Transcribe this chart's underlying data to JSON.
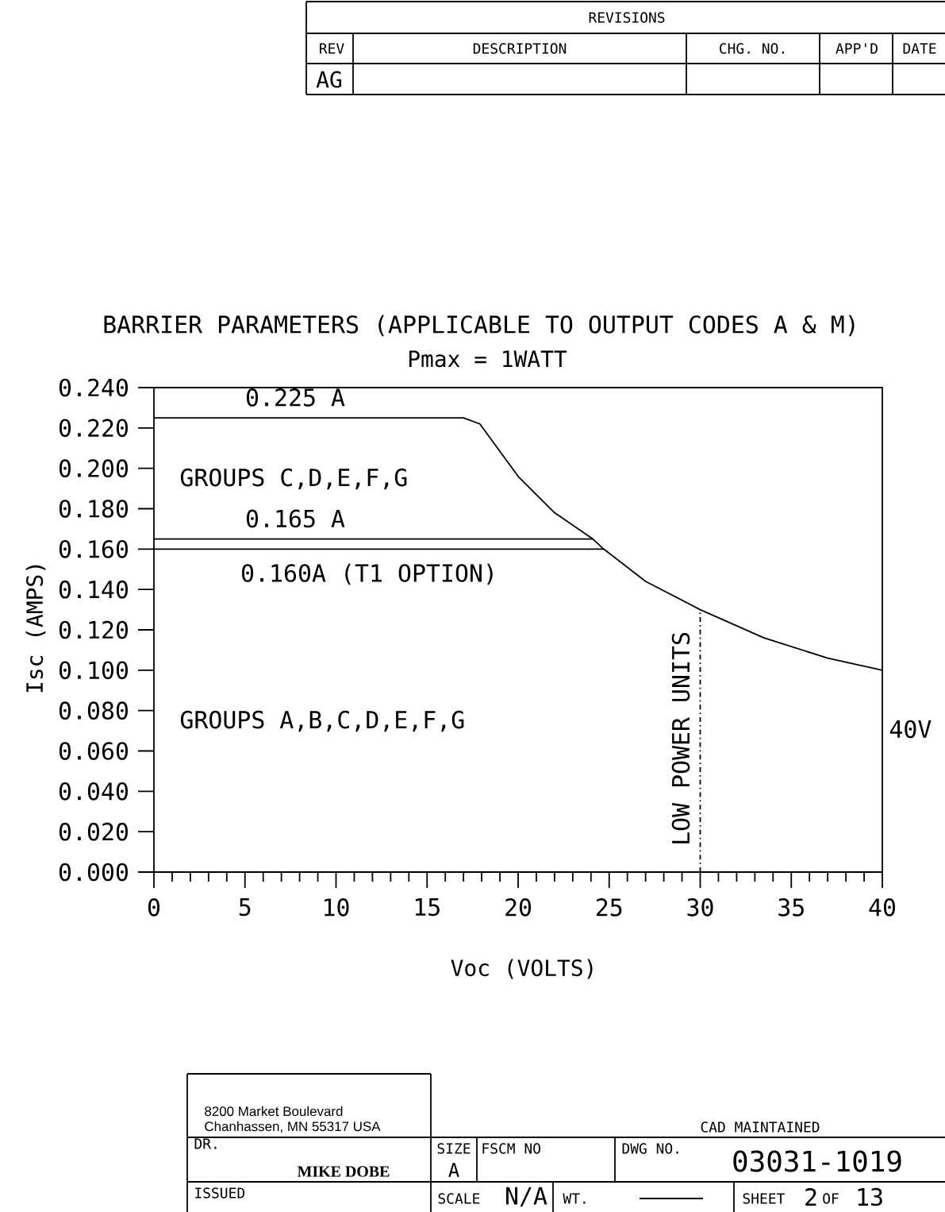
{
  "chart_data": {
    "type": "line",
    "title": "BARRIER PARAMETERS (APPLICABLE TO OUTPUT CODES A & M)",
    "subtitle": "Pmax = 1WATT",
    "xlabel": "Voc (VOLTS)",
    "ylabel": "Isc (AMPS)",
    "xlim": [
      0,
      40
    ],
    "ylim": [
      0,
      0.24
    ],
    "xticks": [
      0,
      5,
      10,
      15,
      20,
      25,
      30,
      35,
      40
    ],
    "yticks": [
      {
        "value": 0,
        "label": "0.000"
      },
      {
        "value": 0.02,
        "label": "0.020"
      },
      {
        "value": 0.04,
        "label": "0.040"
      },
      {
        "value": 0.06,
        "label": "0.060"
      },
      {
        "value": 0.08,
        "label": "0.080"
      },
      {
        "value": 0.1,
        "label": "0.100"
      },
      {
        "value": 0.12,
        "label": "0.120"
      },
      {
        "value": 0.14,
        "label": "0.140"
      },
      {
        "value": 0.16,
        "label": "0.160"
      },
      {
        "value": 0.18,
        "label": "0.180"
      },
      {
        "value": 0.2,
        "label": "0.200"
      },
      {
        "value": 0.22,
        "label": "0.220"
      },
      {
        "value": 0.24,
        "label": "0.240"
      }
    ],
    "series": [
      {
        "color": "#000000",
        "x": [
          0,
          17,
          17.9,
          20,
          22,
          24.1,
          24.7,
          27,
          30,
          33.5,
          37,
          40
        ],
        "values": [
          0.225,
          0.225,
          0.222,
          0.196,
          0.178,
          0.165,
          0.16,
          0.144,
          0.13,
          0.116,
          0.106,
          0.1
        ]
      },
      {
        "color": "#000000",
        "x": [
          0,
          24.1
        ],
        "values": [
          0.165,
          0.165
        ]
      },
      {
        "color": "#000000",
        "x": [
          0,
          24.7
        ],
        "values": [
          0.16,
          0.16
        ]
      },
      {
        "color": "#000000",
        "x": [
          30,
          30
        ],
        "values": [
          0,
          0.13
        ],
        "line_style": "dashed"
      }
    ],
    "annotations": [
      {
        "text": "0.225 A",
        "y": 0.225
      },
      {
        "text": "0.165 A",
        "y": 0.165
      },
      {
        "text": "0.160A (T1 OPTION)",
        "y": 0.16
      },
      "GROUPS  C,D,E,F,G",
      "GROUPS  A,B,C,D,E,F,G",
      "LOW POWER UNITS",
      "40V",
      "REVISIONS",
      "REV",
      "DESCRIPTION",
      "CHG. NO.",
      "APP'D",
      "DATE",
      "AG",
      "8200  Market Boulevard",
      "Chanhassen, MN  55317  USA",
      "CAD MAINTAINED",
      "SIZE",
      "A",
      "FSCM NO",
      "DWG NO.",
      "03031-1019",
      "DR.",
      "MIKE  DOBE",
      "ISSUED",
      "SCALE",
      "N/A",
      "WT.",
      "SHEET",
      "2",
      "OF",
      "13"
    ],
    "grid": false,
    "marker": "none",
    "line_style": "solid"
  }
}
